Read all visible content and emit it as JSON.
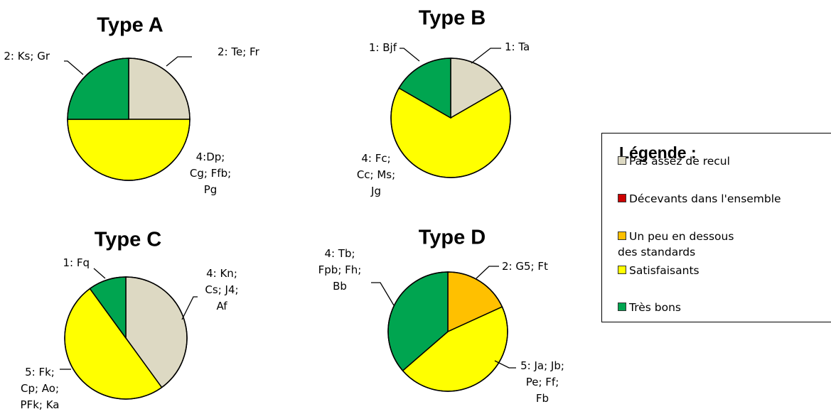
{
  "chart_data": [
    {
      "type": "pie",
      "title": "Type A",
      "slices": [
        {
          "category": "Pas assez de recul",
          "value": 2,
          "label": [
            "2: Te; Fr"
          ]
        },
        {
          "category": "Satisfaisants",
          "value": 4,
          "label": [
            "4:Dp;",
            "Cg; Ffb;",
            "Pg"
          ]
        },
        {
          "category": "Très bons",
          "value": 2,
          "label": [
            "2: Ks; Gr"
          ]
        }
      ]
    },
    {
      "type": "pie",
      "title": "Type B",
      "slices": [
        {
          "category": "Pas assez de recul",
          "value": 1,
          "label": [
            "1: Ta"
          ]
        },
        {
          "category": "Satisfaisants",
          "value": 4,
          "label": [
            "4: Fc;",
            "Cc; Ms;",
            "Jg"
          ]
        },
        {
          "category": "Très bons",
          "value": 1,
          "label": [
            "1: Bjf"
          ]
        }
      ]
    },
    {
      "type": "pie",
      "title": "Type C",
      "slices": [
        {
          "category": "Pas assez de recul",
          "value": 4,
          "label": [
            "4: Kn;",
            "Cs; J4;",
            "Af"
          ]
        },
        {
          "category": "Satisfaisants",
          "value": 5,
          "label": [
            "5: Fk;",
            "Cp; Ao;",
            "PFk; Ka"
          ]
        },
        {
          "category": "Très bons",
          "value": 1,
          "label": [
            "1: Fq"
          ]
        }
      ]
    },
    {
      "type": "pie",
      "title": "Type D",
      "slices": [
        {
          "category": "Un peu en dessous des standards",
          "value": 2,
          "label": [
            "2: G5; Ft"
          ]
        },
        {
          "category": "Satisfaisants",
          "value": 5,
          "label": [
            "5: Ja; Jb;",
            "Pe; Ff;",
            "Fb"
          ]
        },
        {
          "category": "Très bons",
          "value": 4,
          "label": [
            "4: Tb;",
            "Fpb; Fh;",
            "Bb"
          ]
        }
      ]
    }
  ],
  "legend": {
    "title": "Légende :",
    "items": [
      {
        "label": "Pas assez de recul",
        "color": "#ddd9c3"
      },
      {
        "label": "Décevants dans l'ensemble",
        "color": "#cc0000"
      },
      {
        "label": "Un peu en dessous des standards",
        "color": "#ffc000"
      },
      {
        "label": "Satisfaisants",
        "color": "#ffff00"
      },
      {
        "label": "Très bons",
        "color": "#00a550"
      }
    ]
  }
}
